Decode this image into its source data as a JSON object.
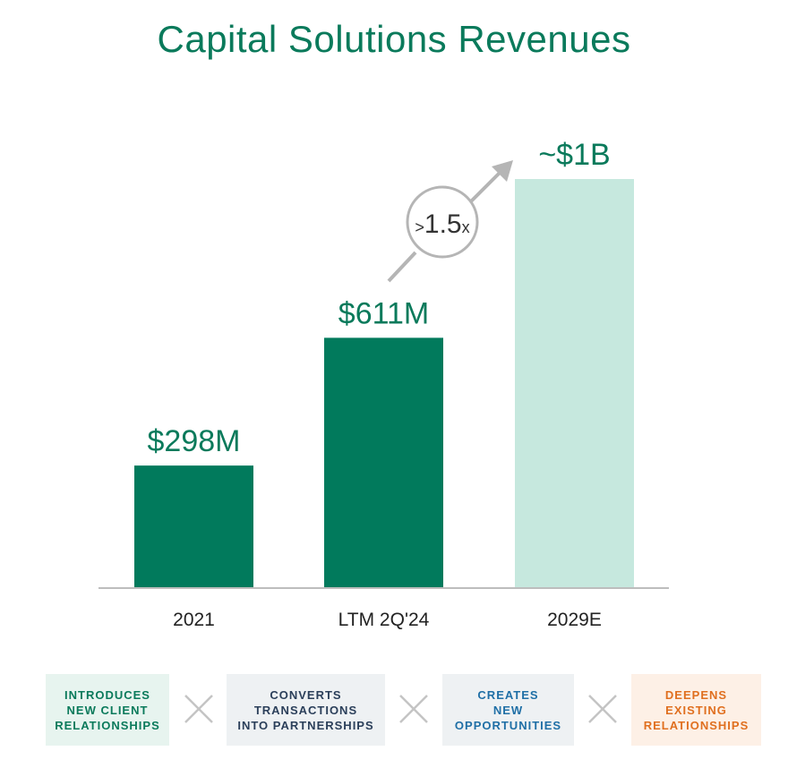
{
  "chart_data": {
    "type": "bar",
    "title": "Capital Solutions Revenues",
    "categories": [
      "2021",
      "LTM 2Q'24",
      "2029E"
    ],
    "values": [
      298,
      611,
      1000
    ],
    "unit": "$M",
    "data_labels": [
      "$298M",
      "$611M",
      "~$1B"
    ],
    "ylim": [
      0,
      1000
    ],
    "grid": false,
    "colors": {
      "actual": "#017a5c",
      "estimate": "#c6e8de",
      "label": "#0a7a5b",
      "baseline": "#bdbdbd",
      "arrow": "#b5b5b5"
    },
    "annotation": {
      "prefix": ">",
      "value": "1.5",
      "suffix": "x"
    }
  },
  "pills": [
    {
      "text": "INTRODUCES\nNEW CLIENT\nRELATIONSHIPS",
      "color": "#0a7a5b",
      "bg": "#e7f4ef"
    },
    {
      "text": "CONVERTS\nTRANSACTIONS\nINTO PARTNERSHIPS",
      "color": "#2b3f5a",
      "bg": "#eef1f3"
    },
    {
      "text": "CREATES\nNEW\nOPPORTUNITIES",
      "color": "#1f6fa6",
      "bg": "#eef1f3"
    },
    {
      "text": "DEEPENS\nEXISTING\nRELATIONSHIPS",
      "color": "#e06f1f",
      "bg": "#fdf0e6"
    }
  ]
}
